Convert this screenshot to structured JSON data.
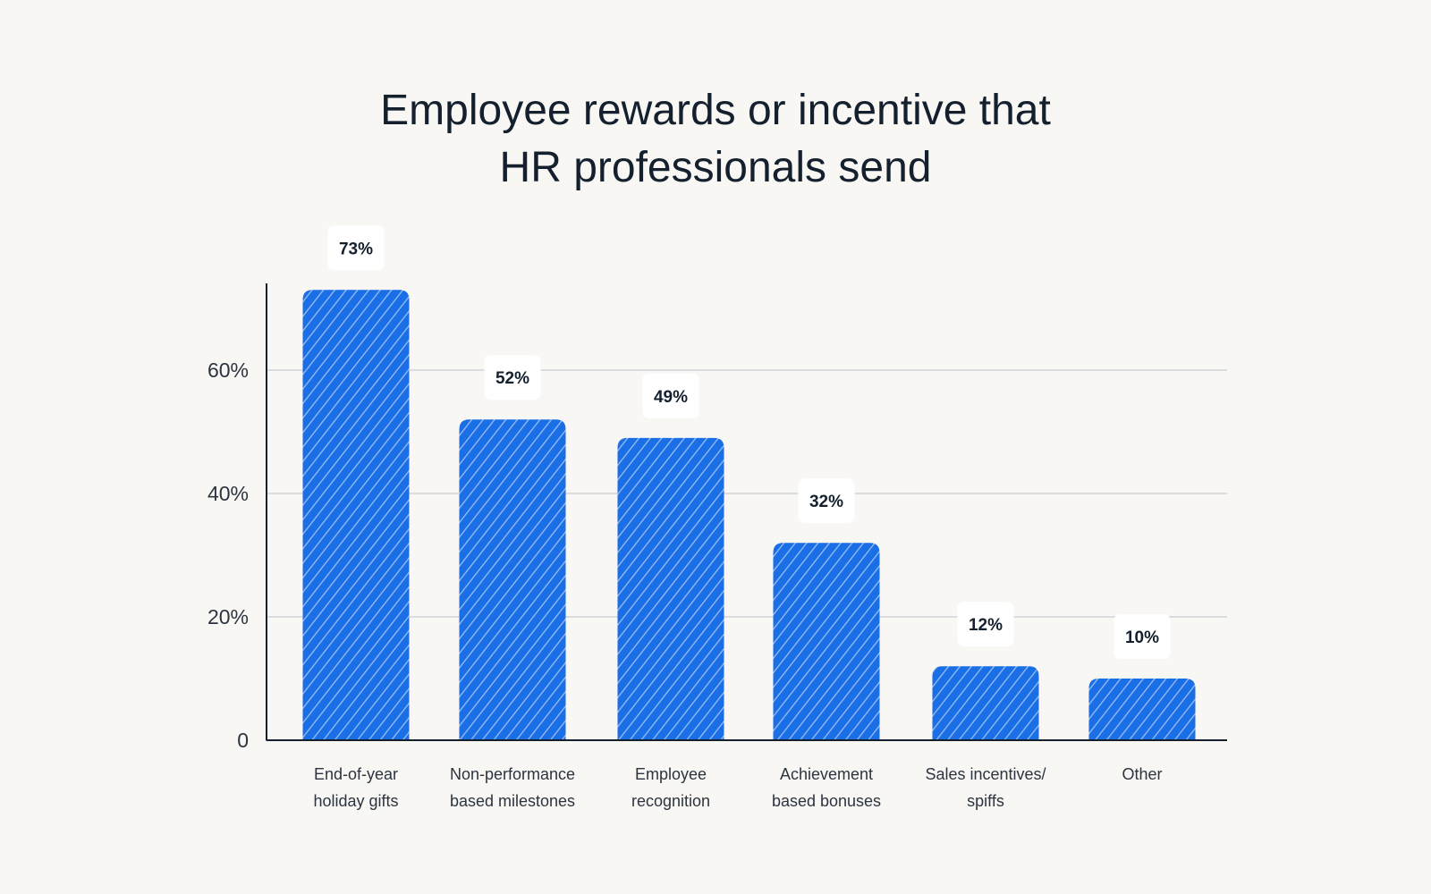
{
  "chart_data": {
    "type": "bar",
    "title_lines": [
      "Employee rewards or incentive that",
      "HR professionals send"
    ],
    "categories": [
      [
        "End-of-year",
        "holiday gifts"
      ],
      [
        "Non-performance",
        "based milestones"
      ],
      [
        "Employee",
        "recognition"
      ],
      [
        "Achievement",
        "based bonuses"
      ],
      [
        "Sales incentives/",
        "spiffs"
      ],
      [
        "Other"
      ]
    ],
    "values": [
      73,
      52,
      49,
      32,
      12,
      10
    ],
    "value_labels": [
      "73%",
      "52%",
      "49%",
      "32%",
      "12%",
      "10%"
    ],
    "yticks": [
      0,
      20,
      40,
      60
    ],
    "ytick_labels": [
      "0",
      "20%",
      "40%",
      "60%"
    ],
    "ylim": [
      0,
      75
    ],
    "grid": true,
    "legend": "none",
    "colors": {
      "bar": "#1a6ee6",
      "background": "#f8f7f4",
      "grid": "#cfd3da",
      "axis": "#14202e",
      "label_box": "#ffffff",
      "text": "#14202e"
    }
  }
}
